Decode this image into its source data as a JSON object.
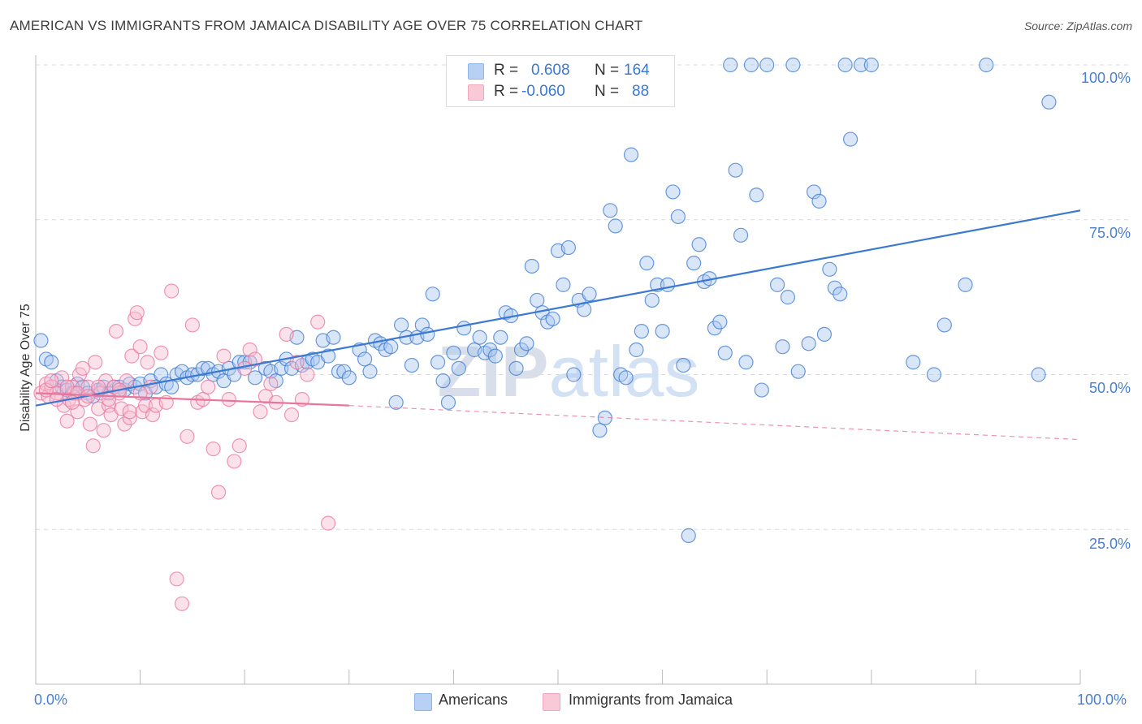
{
  "header": {
    "title": "AMERICAN VS IMMIGRANTS FROM JAMAICA DISABILITY AGE OVER 75 CORRELATION CHART",
    "source": "Source: ZipAtlas.com"
  },
  "watermark": "ZIPatlas",
  "legend_box": {
    "rows": [
      {
        "r_label": "R =",
        "r_value": "0.608",
        "n_label": "N =",
        "n_value": "164",
        "color": "#8fb4e8"
      },
      {
        "r_label": "R =",
        "r_value": "-0.060",
        "n_label": "N =",
        "n_value": "88",
        "color": "#f4a6bf"
      }
    ]
  },
  "bottom_legend": [
    {
      "label": "Americans",
      "color": "#8fb4e8"
    },
    {
      "label": "Immigrants from Jamaica",
      "color": "#f4a6bf"
    }
  ],
  "chart_data": {
    "type": "scatter",
    "title": "AMERICAN VS IMMIGRANTS FROM JAMAICA DISABILITY AGE OVER 75 CORRELATION CHART",
    "ylabel": "Disability Age Over 75",
    "xlabel": "",
    "xlim": [
      0,
      100
    ],
    "ylim": [
      0,
      100
    ],
    "x_tick_labels": [
      "0.0%",
      "100.0%"
    ],
    "y_tick_labels": [
      "100.0%",
      "75.0%",
      "50.0%",
      "25.0%"
    ],
    "y_ticks": [
      100,
      75,
      50,
      25
    ],
    "grid": true,
    "legend": "top-center",
    "series": [
      {
        "name": "Americans",
        "color": "#3b78d0",
        "fill": "#a9c8ef",
        "trend": {
          "x": [
            0,
            100
          ],
          "y": [
            45.0,
            76.5
          ]
        },
        "points": [
          [
            0.5,
            55.5
          ],
          [
            1,
            52.5
          ],
          [
            1.5,
            52
          ],
          [
            2,
            49
          ],
          [
            2.5,
            48
          ],
          [
            3,
            47.5
          ],
          [
            3.5,
            47
          ],
          [
            4,
            48.5
          ],
          [
            4.5,
            48
          ],
          [
            5,
            47
          ],
          [
            5.5,
            46.5
          ],
          [
            6,
            47.5
          ],
          [
            6.5,
            48
          ],
          [
            7,
            47
          ],
          [
            7.5,
            48
          ],
          [
            8,
            48
          ],
          [
            8.5,
            47.5
          ],
          [
            9,
            48.5
          ],
          [
            9.5,
            48
          ],
          [
            10,
            48.5
          ],
          [
            10.5,
            47
          ],
          [
            11,
            49
          ],
          [
            11.5,
            48
          ],
          [
            12,
            50
          ],
          [
            12.5,
            48.5
          ],
          [
            13,
            48
          ],
          [
            13.5,
            50
          ],
          [
            14,
            50.5
          ],
          [
            14.5,
            49.5
          ],
          [
            15,
            50
          ],
          [
            15.5,
            50
          ],
          [
            16,
            51
          ],
          [
            16.5,
            51
          ],
          [
            17,
            50
          ],
          [
            17.5,
            50.5
          ],
          [
            18,
            49
          ],
          [
            18.5,
            51
          ],
          [
            19,
            50
          ],
          [
            19.5,
            52
          ],
          [
            20,
            52
          ],
          [
            20.5,
            52
          ],
          [
            21,
            49.5
          ],
          [
            22,
            51
          ],
          [
            22.5,
            50.5
          ],
          [
            23,
            49
          ],
          [
            23.5,
            51
          ],
          [
            24,
            52.5
          ],
          [
            24.5,
            51
          ],
          [
            25,
            56
          ],
          [
            25.5,
            51.5
          ],
          [
            26,
            52
          ],
          [
            26.5,
            52.5
          ],
          [
            27,
            52
          ],
          [
            27.5,
            55.5
          ],
          [
            28,
            53
          ],
          [
            28.5,
            56
          ],
          [
            29,
            50.5
          ],
          [
            29.5,
            50.5
          ],
          [
            30,
            49.5
          ],
          [
            31,
            54
          ],
          [
            31.5,
            52.5
          ],
          [
            32,
            50.5
          ],
          [
            32.5,
            55.5
          ],
          [
            33,
            55
          ],
          [
            33.5,
            54
          ],
          [
            34,
            54.5
          ],
          [
            34.5,
            45.5
          ],
          [
            35,
            58
          ],
          [
            35.5,
            56
          ],
          [
            36,
            51.5
          ],
          [
            36.5,
            56
          ],
          [
            37,
            58
          ],
          [
            37.5,
            56.5
          ],
          [
            38,
            63
          ],
          [
            38.5,
            52
          ],
          [
            39,
            49
          ],
          [
            39.5,
            45.5
          ],
          [
            40,
            53.5
          ],
          [
            40.5,
            51
          ],
          [
            41,
            57.5
          ],
          [
            42,
            54
          ],
          [
            42.5,
            56
          ],
          [
            43,
            53.5
          ],
          [
            43.5,
            54
          ],
          [
            44,
            53
          ],
          [
            44.5,
            56
          ],
          [
            45,
            60
          ],
          [
            45.5,
            59.5
          ],
          [
            46,
            51
          ],
          [
            46.5,
            54
          ],
          [
            47,
            55
          ],
          [
            47.5,
            67.5
          ],
          [
            48,
            62
          ],
          [
            48.5,
            60
          ],
          [
            49,
            58.5
          ],
          [
            49.5,
            59
          ],
          [
            50,
            70
          ],
          [
            50.5,
            64.5
          ],
          [
            51,
            70.5
          ],
          [
            51.5,
            50
          ],
          [
            52,
            62
          ],
          [
            52.5,
            60.5
          ],
          [
            53,
            63
          ],
          [
            54,
            41
          ],
          [
            54.5,
            43
          ],
          [
            55,
            76.5
          ],
          [
            55.5,
            74
          ],
          [
            56,
            50
          ],
          [
            56.5,
            49.5
          ],
          [
            57,
            85.5
          ],
          [
            57.5,
            54
          ],
          [
            58,
            57
          ],
          [
            58.5,
            68
          ],
          [
            59,
            62
          ],
          [
            59.5,
            64.5
          ],
          [
            60,
            57
          ],
          [
            60.5,
            64.5
          ],
          [
            61,
            79.5
          ],
          [
            61.5,
            75.5
          ],
          [
            62,
            51.5
          ],
          [
            62.5,
            24
          ],
          [
            63,
            68
          ],
          [
            63.5,
            71
          ],
          [
            64,
            65
          ],
          [
            64.5,
            65.5
          ],
          [
            65,
            57.5
          ],
          [
            65.5,
            58.5
          ],
          [
            66,
            53.5
          ],
          [
            66.5,
            100
          ],
          [
            67,
            83
          ],
          [
            67.5,
            72.5
          ],
          [
            68,
            52
          ],
          [
            68.5,
            100
          ],
          [
            69,
            79
          ],
          [
            69.5,
            47.5
          ],
          [
            70,
            100
          ],
          [
            71,
            64.5
          ],
          [
            71.5,
            54.5
          ],
          [
            72,
            62.5
          ],
          [
            72.5,
            100
          ],
          [
            73,
            50.5
          ],
          [
            74,
            55
          ],
          [
            74.5,
            79.5
          ],
          [
            75,
            78
          ],
          [
            75.5,
            56.5
          ],
          [
            76,
            67
          ],
          [
            76.5,
            64
          ],
          [
            77,
            63
          ],
          [
            77.5,
            100
          ],
          [
            78,
            88
          ],
          [
            79,
            100
          ],
          [
            80,
            100
          ],
          [
            84,
            52
          ],
          [
            86,
            50
          ],
          [
            87,
            58
          ],
          [
            89,
            64.5
          ],
          [
            91,
            100
          ],
          [
            96,
            50
          ],
          [
            97,
            94
          ]
        ]
      },
      {
        "name": "Immigrants from Jamaica",
        "color": "#e8759c",
        "fill": "#f7bdd0",
        "trend": {
          "x": [
            0,
            30
          ],
          "y": [
            47.0,
            45.0
          ]
        },
        "trend_dashed": {
          "x": [
            30,
            100
          ],
          "y": [
            45.0,
            39.5
          ]
        },
        "points": [
          [
            0.5,
            47
          ],
          [
            1,
            48.5
          ],
          [
            1.2,
            46.5
          ],
          [
            1.5,
            48
          ],
          [
            2,
            47
          ],
          [
            2.5,
            49.5
          ],
          [
            2.7,
            45
          ],
          [
            3,
            42.5
          ],
          [
            3.2,
            46
          ],
          [
            3.5,
            48
          ],
          [
            3.7,
            47
          ],
          [
            4,
            44
          ],
          [
            4.2,
            50
          ],
          [
            4.5,
            51
          ],
          [
            4.7,
            46
          ],
          [
            5,
            48
          ],
          [
            5.2,
            42
          ],
          [
            5.5,
            38.5
          ],
          [
            5.7,
            52
          ],
          [
            6,
            44.5
          ],
          [
            6.2,
            47
          ],
          [
            6.5,
            41
          ],
          [
            6.7,
            49
          ],
          [
            7,
            45
          ],
          [
            7.2,
            43.5
          ],
          [
            7.5,
            48
          ],
          [
            7.7,
            57
          ],
          [
            8,
            47
          ],
          [
            8.2,
            44.5
          ],
          [
            8.5,
            42
          ],
          [
            8.7,
            49
          ],
          [
            9,
            43
          ],
          [
            9.2,
            53
          ],
          [
            9.5,
            59
          ],
          [
            9.7,
            60
          ],
          [
            10,
            54.5
          ],
          [
            10.2,
            44
          ],
          [
            10.5,
            45
          ],
          [
            10.7,
            52
          ],
          [
            11,
            48
          ],
          [
            11.2,
            43.5
          ],
          [
            11.5,
            45
          ],
          [
            12,
            53.5
          ],
          [
            12.5,
            45.5
          ],
          [
            13,
            63.5
          ],
          [
            13.5,
            17
          ],
          [
            14,
            13
          ],
          [
            14.5,
            40
          ],
          [
            15,
            58
          ],
          [
            15.5,
            45.5
          ],
          [
            16,
            46
          ],
          [
            16.5,
            48
          ],
          [
            17,
            38
          ],
          [
            17.5,
            31
          ],
          [
            18,
            53
          ],
          [
            18.5,
            46
          ],
          [
            19,
            36
          ],
          [
            19.5,
            38.5
          ],
          [
            20,
            51
          ],
          [
            20.5,
            54
          ],
          [
            21,
            52.5
          ],
          [
            21.5,
            44
          ],
          [
            22,
            46.5
          ],
          [
            22.5,
            48.5
          ],
          [
            23,
            45.5
          ],
          [
            24,
            56.5
          ],
          [
            24.5,
            43.5
          ],
          [
            25,
            52
          ],
          [
            25.5,
            46
          ],
          [
            26,
            50
          ],
          [
            27,
            58.5
          ],
          [
            28,
            26
          ],
          [
            1,
            47.5
          ],
          [
            2,
            46
          ],
          [
            3,
            48
          ],
          [
            4,
            47
          ],
          [
            5,
            46.5
          ],
          [
            6,
            48
          ],
          [
            7,
            46
          ],
          [
            8,
            47.5
          ],
          [
            9,
            44
          ],
          [
            10,
            47
          ],
          [
            1.5,
            49
          ],
          [
            3.5,
            45.5
          ]
        ]
      }
    ]
  }
}
